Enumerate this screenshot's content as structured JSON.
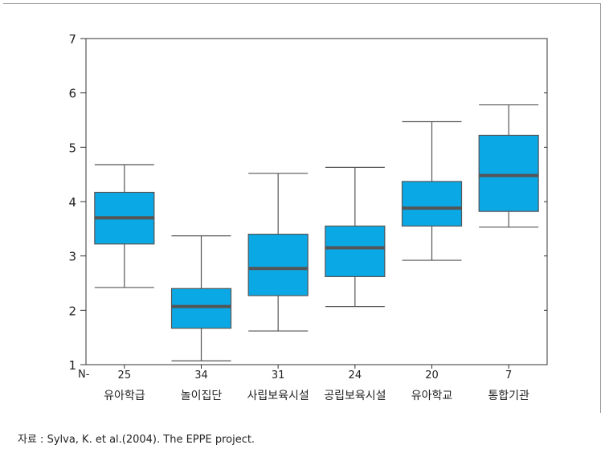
{
  "chart_data": {
    "type": "box",
    "ylim": [
      1,
      7
    ],
    "yticks": [
      1,
      2,
      3,
      4,
      5,
      6,
      7
    ],
    "n_prefix": "N-",
    "grid": false,
    "box_color": "#0aa9e6",
    "median_color": "#555555",
    "categories": [
      "유아학급",
      "놀이집단",
      "사립보육시설",
      "공립보육시설",
      "유아학교",
      "통합기관"
    ],
    "n": [
      "25",
      "34",
      "31",
      "24",
      "20",
      "7"
    ],
    "boxes": [
      {
        "min": 2.42,
        "q1": 3.22,
        "median": 3.7,
        "q3": 4.17,
        "max": 4.68
      },
      {
        "min": 1.07,
        "q1": 1.67,
        "median": 2.07,
        "q3": 2.4,
        "max": 3.37
      },
      {
        "min": 1.62,
        "q1": 2.27,
        "median": 2.77,
        "q3": 3.4,
        "max": 4.52
      },
      {
        "min": 2.07,
        "q1": 2.62,
        "median": 3.15,
        "q3": 3.55,
        "max": 4.63
      },
      {
        "min": 2.92,
        "q1": 3.55,
        "median": 3.88,
        "q3": 4.37,
        "max": 5.47
      },
      {
        "min": 3.53,
        "q1": 3.82,
        "median": 4.48,
        "q3": 5.22,
        "max": 5.78
      }
    ]
  },
  "source_note": "자료 : Sylva, K. et al.(2004). The EPPE project."
}
